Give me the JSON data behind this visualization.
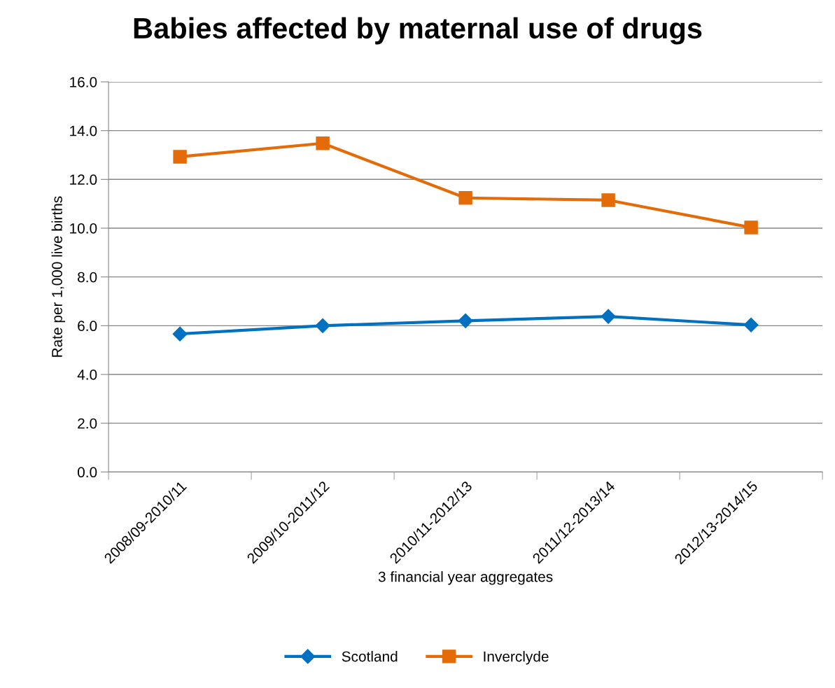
{
  "chart_data": {
    "type": "line",
    "title": "Babies affected by maternal use of drugs",
    "xlabel": "3 financial year aggregates",
    "ylabel": "Rate per 1,000 live births",
    "categories": [
      "2008/09-2010/11",
      "2009/10-2011/12",
      "2010/11-2012/13",
      "2011/12-2013/14",
      "2012/13-2014/15"
    ],
    "series": [
      {
        "name": "Scotland",
        "color": "#0070c0",
        "marker": "diamond",
        "values": [
          5.66,
          6.0,
          6.2,
          6.38,
          6.03
        ]
      },
      {
        "name": "Inverclyde",
        "color": "#e36c09",
        "marker": "square",
        "values": [
          12.93,
          13.48,
          11.24,
          11.15,
          10.03
        ]
      }
    ],
    "ylim": [
      0,
      16
    ],
    "yticks": [
      {
        "value": 0,
        "label": "0.0"
      },
      {
        "value": 2,
        "label": "2.0"
      },
      {
        "value": 4,
        "label": "4.0"
      },
      {
        "value": 6,
        "label": "6.0"
      },
      {
        "value": 8,
        "label": "8.0"
      },
      {
        "value": 10,
        "label": "10.0"
      },
      {
        "value": 12,
        "label": "12.0"
      },
      {
        "value": 14,
        "label": "14.0"
      },
      {
        "value": 16,
        "label": "16.0"
      }
    ],
    "grid": "y",
    "legend": "bottom",
    "line_style": "solid"
  }
}
